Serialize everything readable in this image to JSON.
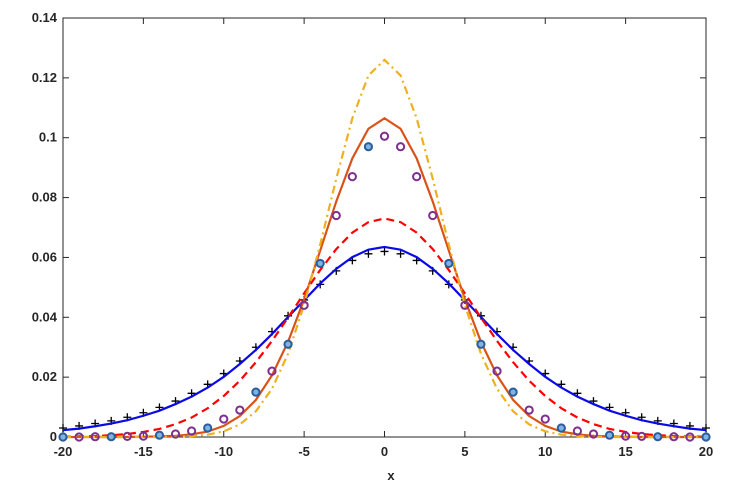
{
  "chart_data": {
    "type": "line",
    "xlabel": "x",
    "x": [
      -20,
      -19,
      -18,
      -17,
      -16,
      -15,
      -14,
      -13,
      -12,
      -11,
      -10,
      -9,
      -8,
      -7,
      -6,
      -5,
      -4,
      -3,
      -2,
      -1,
      0,
      1,
      2,
      3,
      4,
      5,
      6,
      7,
      8,
      9,
      10,
      11,
      12,
      13,
      14,
      15,
      16,
      17,
      18,
      19,
      20
    ],
    "xlim": [
      -20,
      20
    ],
    "xticks": [
      -20,
      -15,
      -10,
      -5,
      0,
      5,
      10,
      15,
      20
    ],
    "ylim": [
      0,
      0.14
    ],
    "yticks": [
      0,
      0.02,
      0.04,
      0.06,
      0.08,
      0.1,
      0.12,
      0.14
    ],
    "grid": false,
    "series": [
      {
        "style": "markers",
        "marker": "+",
        "color": "#000000",
        "values": [
          0.003,
          0.0037,
          0.0045,
          0.0054,
          0.0066,
          0.0081,
          0.0099,
          0.012,
          0.0146,
          0.0176,
          0.0212,
          0.0254,
          0.03,
          0.0352,
          0.0405,
          0.0458,
          0.051,
          0.0555,
          0.059,
          0.0612,
          0.062,
          0.0612,
          0.059,
          0.0555,
          0.051,
          0.0458,
          0.0405,
          0.0352,
          0.03,
          0.0254,
          0.0212,
          0.0176,
          0.0146,
          0.012,
          0.0099,
          0.0081,
          0.0066,
          0.0054,
          0.0045,
          0.0037,
          0.003
        ]
      },
      {
        "style": "solid",
        "color": "#0a0ae6",
        "values": [
          0.0023,
          0.0028,
          0.0036,
          0.0045,
          0.0056,
          0.0071,
          0.0088,
          0.011,
          0.0135,
          0.0165,
          0.0201,
          0.0244,
          0.0291,
          0.0344,
          0.0401,
          0.0457,
          0.0513,
          0.0562,
          0.0601,
          0.0626,
          0.0635,
          0.0626,
          0.0601,
          0.0562,
          0.0513,
          0.0457,
          0.0401,
          0.0344,
          0.0291,
          0.0244,
          0.0201,
          0.0165,
          0.0135,
          0.011,
          0.0088,
          0.0071,
          0.0056,
          0.0045,
          0.0036,
          0.0028,
          0.0023
        ]
      },
      {
        "style": "dashed",
        "color": "#ff0000",
        "values": [
          0.0001,
          0.0002,
          0.0003,
          0.0006,
          0.001,
          0.0017,
          0.0027,
          0.0043,
          0.0065,
          0.0096,
          0.0137,
          0.0188,
          0.025,
          0.0321,
          0.0399,
          0.048,
          0.0558,
          0.0628,
          0.0683,
          0.0718,
          0.073,
          0.0718,
          0.0683,
          0.0628,
          0.0558,
          0.048,
          0.0399,
          0.0321,
          0.025,
          0.0188,
          0.0137,
          0.0096,
          0.0065,
          0.0043,
          0.0027,
          0.0017,
          0.001,
          0.0006,
          0.0003,
          0.0002,
          0.0001
        ]
      },
      {
        "style": "solid",
        "color": "#d95319",
        "values": [
          0,
          0,
          0,
          0,
          0,
          0.0001,
          0.0002,
          0.0004,
          0.0009,
          0.0018,
          0.0037,
          0.007,
          0.0124,
          0.0206,
          0.0318,
          0.046,
          0.0623,
          0.0787,
          0.0931,
          0.103,
          0.1065,
          0.103,
          0.0931,
          0.0787,
          0.0623,
          0.046,
          0.0318,
          0.0206,
          0.0124,
          0.007,
          0.0037,
          0.0018,
          0.0009,
          0.0004,
          0.0002,
          0.0001,
          0,
          0,
          0,
          0,
          0
        ]
      },
      {
        "style": "dashdot",
        "color": "#edb120",
        "values": [
          0,
          0,
          0,
          0,
          0,
          0,
          0,
          0.0001,
          0.0003,
          0.0008,
          0.0019,
          0.0042,
          0.0086,
          0.0161,
          0.0278,
          0.0441,
          0.0643,
          0.0863,
          0.1065,
          0.1208,
          0.126,
          0.1208,
          0.1065,
          0.0863,
          0.0643,
          0.0441,
          0.0278,
          0.0161,
          0.0086,
          0.0042,
          0.0019,
          0.0008,
          0.0003,
          0.0001,
          0,
          0,
          0,
          0,
          0,
          0,
          0
        ]
      },
      {
        "style": "markers",
        "marker": "o",
        "color": "#7e2f8e",
        "facecolor": "none",
        "x": [
          -19,
          -18,
          -16,
          -15,
          -13,
          -12,
          -10,
          -9,
          -7,
          -5,
          -3,
          -2,
          0,
          1,
          2,
          3,
          5,
          7,
          9,
          10,
          12,
          13,
          15,
          16,
          18,
          19
        ],
        "values": [
          0,
          0.0001,
          0.0002,
          0.0003,
          0.001,
          0.002,
          0.006,
          0.009,
          0.022,
          0.044,
          0.074,
          0.087,
          0.1005,
          0.097,
          0.087,
          0.074,
          0.044,
          0.022,
          0.009,
          0.006,
          0.002,
          0.001,
          0.0003,
          0.0002,
          0.0001,
          0
        ]
      },
      {
        "style": "markers",
        "marker": "o",
        "color": "#2a5d9a",
        "facecolor": "#7fb2e5",
        "x": [
          -20,
          -17,
          -14,
          -11,
          -8,
          -6,
          -4,
          -1,
          4,
          6,
          8,
          11,
          14,
          17,
          20
        ],
        "values": [
          0,
          0.0001,
          0.0006,
          0.003,
          0.015,
          0.031,
          0.058,
          0.097,
          0.058,
          0.031,
          0.015,
          0.003,
          0.0006,
          0.0001,
          0
        ]
      }
    ]
  }
}
